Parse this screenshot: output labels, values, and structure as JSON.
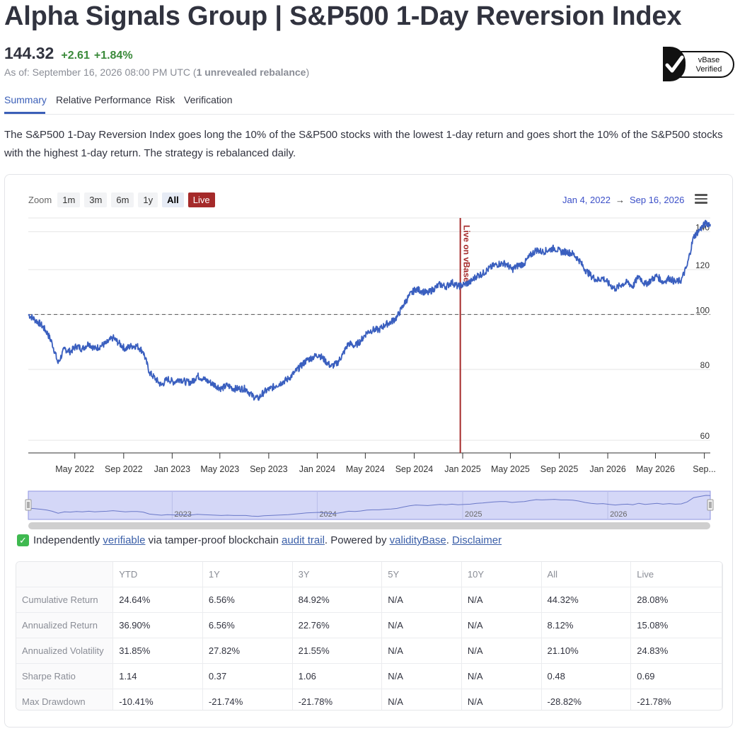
{
  "header": {
    "title": "Alpha Signals Group | S&P500 1-Day Reversion Index",
    "price": "144.32",
    "change_abs": "+2.61",
    "change_pct": "+1.84%",
    "as_of_prefix": "As of: September 16, 2026 08:00 PM UTC (",
    "as_of_bold": "1 unrevealed rebalance",
    "as_of_suffix": ")",
    "badge_line1": "vBase",
    "badge_line2": "Verified"
  },
  "tabs": [
    {
      "label": "Summary",
      "active": true
    },
    {
      "label": "Relative Performance",
      "active": false
    },
    {
      "label": "Risk",
      "active": false
    },
    {
      "label": "Verification",
      "active": false
    }
  ],
  "description": "The S&P500 1-Day Reversion Index goes long the 10% of the S&P500 stocks with the lowest 1-day return and goes short the 10% of the S&P500 stocks with the highest 1-day return. The strategy is rebalanced daily.",
  "zoom": {
    "label": "Zoom",
    "buttons": [
      "1m",
      "3m",
      "6m",
      "1y",
      "All",
      "Live"
    ],
    "selected": "All"
  },
  "range": {
    "from": "Jan 4, 2022",
    "arrow": "→",
    "to": "Sep 16, 2026"
  },
  "colors": {
    "line": "#3a5fbf",
    "live_marker": "#a52a2a",
    "navigator_fill": "#d4d7f7"
  },
  "chart_data": {
    "type": "line",
    "series": [
      {
        "x": [
          "2022-01-04",
          "2022-01-20",
          "2022-02-05",
          "2022-02-20",
          "2022-03-05",
          "2022-03-20",
          "2022-04-05",
          "2022-04-20",
          "2022-05-05",
          "2022-05-20",
          "2022-06-05",
          "2022-06-20",
          "2022-07-05",
          "2022-07-20",
          "2022-08-05",
          "2022-08-20",
          "2022-09-05",
          "2022-09-20",
          "2022-10-05",
          "2022-10-20",
          "2022-11-05",
          "2022-11-20",
          "2022-12-05",
          "2022-12-20",
          "2023-01-05",
          "2023-01-20",
          "2023-02-05",
          "2023-02-20",
          "2023-03-05",
          "2023-03-20",
          "2023-04-05",
          "2023-04-20",
          "2023-05-05",
          "2023-05-20",
          "2023-06-05",
          "2023-06-20",
          "2023-07-05",
          "2023-07-20",
          "2023-08-05",
          "2023-08-20",
          "2023-09-05",
          "2023-09-20",
          "2023-10-05",
          "2023-10-20",
          "2023-11-05",
          "2023-11-20",
          "2023-12-05",
          "2023-12-20",
          "2024-01-05",
          "2024-01-20",
          "2024-02-05",
          "2024-02-20",
          "2024-03-05",
          "2024-03-20",
          "2024-04-05",
          "2024-04-20",
          "2024-05-05",
          "2024-05-20",
          "2024-06-05",
          "2024-06-20",
          "2024-07-05",
          "2024-07-20",
          "2024-08-05",
          "2024-08-20",
          "2024-09-05",
          "2024-09-20",
          "2024-10-05",
          "2024-10-20",
          "2024-11-05",
          "2024-11-20",
          "2024-12-05",
          "2024-12-20",
          "2025-01-05",
          "2025-01-20",
          "2025-02-05",
          "2025-02-20",
          "2025-03-05",
          "2025-03-20",
          "2025-04-05",
          "2025-04-20",
          "2025-05-05",
          "2025-05-20",
          "2025-06-05",
          "2025-06-20",
          "2025-07-05",
          "2025-07-20",
          "2025-08-05",
          "2025-08-20",
          "2025-09-05",
          "2025-09-20",
          "2025-10-05",
          "2025-10-20",
          "2025-11-05",
          "2025-11-20",
          "2025-12-05",
          "2025-12-20",
          "2026-01-05",
          "2026-01-20",
          "2026-02-05",
          "2026-02-20",
          "2026-03-05",
          "2026-03-20",
          "2026-04-05",
          "2026-04-20",
          "2026-05-05",
          "2026-05-20",
          "2026-06-05",
          "2026-06-20",
          "2026-07-05",
          "2026-07-20",
          "2026-08-05",
          "2026-08-20",
          "2026-09-05",
          "2026-09-16"
        ],
        "y": [
          100,
          98,
          96,
          93,
          89,
          82,
          87,
          86,
          88,
          87,
          89,
          87,
          88,
          89,
          91,
          89,
          87,
          88,
          88,
          86,
          79,
          77,
          75,
          77,
          76,
          77,
          76,
          76,
          78,
          77,
          76,
          75,
          74,
          75,
          74,
          74,
          74,
          72,
          71,
          73,
          74,
          75,
          76,
          77,
          79,
          81,
          83,
          84,
          85,
          83,
          81,
          82,
          85,
          89,
          88,
          90,
          93,
          94,
          94,
          96,
          97,
          99,
          104,
          108,
          111,
          110,
          109,
          111,
          113,
          112,
          114,
          112,
          113,
          114,
          117,
          118,
          120,
          122,
          123,
          123,
          120,
          122,
          123,
          127,
          130,
          129,
          130,
          131,
          129,
          129,
          128,
          125,
          120,
          117,
          115,
          116,
          113,
          111,
          113,
          114,
          112,
          117,
          113,
          115,
          117,
          114,
          116,
          114,
          115,
          122,
          137,
          141,
          145,
          144.32
        ]
      }
    ],
    "y_ticks": [
      60,
      80,
      100,
      120,
      140
    ],
    "ylim": [
      57,
      148
    ],
    "y_scale": "log",
    "x_ticks": [
      "May 2022",
      "Sep 2022",
      "Jan 2023",
      "May 2023",
      "Sep 2023",
      "Jan 2024",
      "May 2024",
      "Sep 2024",
      "Jan 2025",
      "May 2025",
      "Sep 2025",
      "Jan 2026",
      "May 2026",
      "Sep..."
    ],
    "reference_line": 100,
    "live_marker": {
      "date": "2024-12-26",
      "label": "Live on vBase"
    },
    "navigator_labels": [
      "2023",
      "2024",
      "2025",
      "2026"
    ],
    "grid": true,
    "legend": "none"
  },
  "verify": {
    "prefix": "Independently ",
    "link1": "verifiable",
    "mid1": " via tamper-proof blockchain ",
    "link2": "audit trail",
    "mid2": ". Powered by ",
    "link3": "validityBase",
    "mid3": ". ",
    "link4": "Disclaimer"
  },
  "table": {
    "columns": [
      "",
      "YTD",
      "1Y",
      "3Y",
      "5Y",
      "10Y",
      "All",
      "Live"
    ],
    "rows": [
      [
        "Cumulative Return",
        "24.64%",
        "6.56%",
        "84.92%",
        "N/A",
        "N/A",
        "44.32%",
        "28.08%"
      ],
      [
        "Annualized Return",
        "36.90%",
        "6.56%",
        "22.76%",
        "N/A",
        "N/A",
        "8.12%",
        "15.08%"
      ],
      [
        "Annualized Volatility",
        "31.85%",
        "27.82%",
        "21.55%",
        "N/A",
        "N/A",
        "21.10%",
        "24.83%"
      ],
      [
        "Sharpe Ratio",
        "1.14",
        "0.37",
        "1.06",
        "N/A",
        "N/A",
        "0.48",
        "0.69"
      ],
      [
        "Max Drawdown",
        "-10.41%",
        "-21.74%",
        "-21.78%",
        "N/A",
        "N/A",
        "-28.82%",
        "-21.78%"
      ]
    ]
  }
}
